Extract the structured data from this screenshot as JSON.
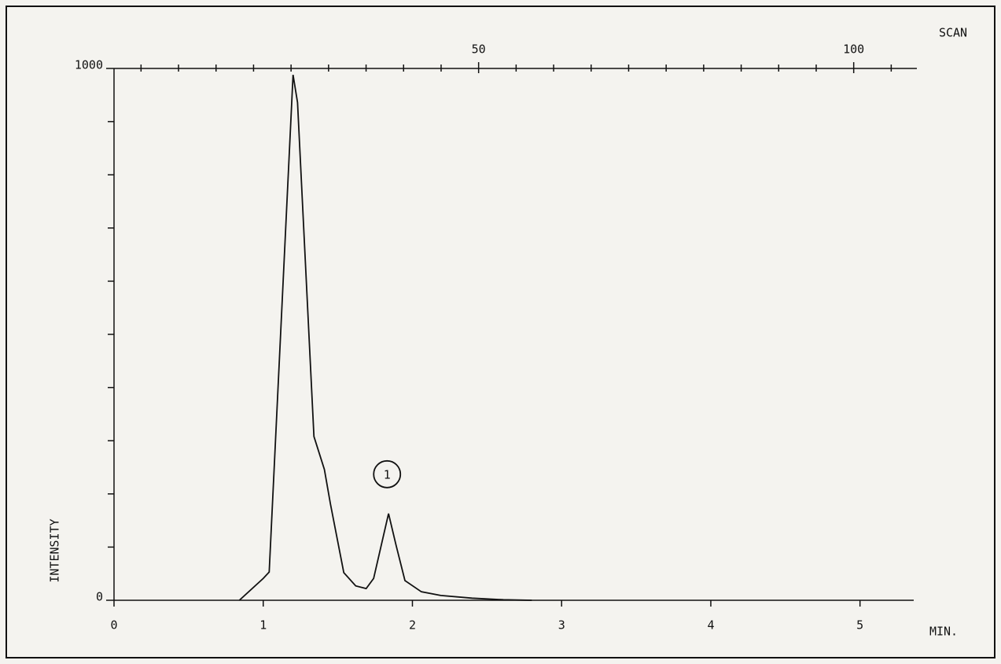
{
  "chart_data": {
    "type": "line",
    "x_axis_label": "MIN.",
    "y_axis_label": "INTENSITY",
    "x2_axis_label": "SCAN",
    "x": [
      0.84,
      1.0,
      1.04,
      1.2,
      1.23,
      1.34,
      1.41,
      1.45,
      1.54,
      1.62,
      1.69,
      1.74,
      1.84,
      1.89,
      1.95,
      2.06,
      2.19,
      2.4,
      2.61,
      2.8
    ],
    "series": [
      {
        "color": "#111111",
        "values": [
          0,
          41,
          53,
          988,
          936,
          308,
          246,
          182,
          52,
          27,
          22,
          41,
          163,
          104,
          37,
          16,
          9,
          4,
          1,
          0
        ]
      }
    ],
    "annotations": [
      {
        "text": "1",
        "x": 1.83,
        "y": 237
      }
    ],
    "xlim": [
      0,
      5.36
    ],
    "xticks": [
      0,
      1,
      2,
      3,
      4,
      5
    ],
    "ylim": [
      0,
      1000
    ],
    "yticks": [
      0,
      1000
    ],
    "y_minor_ticks": [
      100,
      200,
      300,
      400,
      500,
      600,
      700,
      800,
      900
    ],
    "x2lim": [
      1.4,
      108
    ],
    "x2ticks": [
      50,
      100
    ],
    "x2_minor_ticks": [
      5,
      10,
      15,
      20,
      25,
      30,
      35,
      40,
      45,
      55,
      60,
      65,
      70,
      75,
      80,
      85,
      90,
      95,
      105
    ]
  }
}
